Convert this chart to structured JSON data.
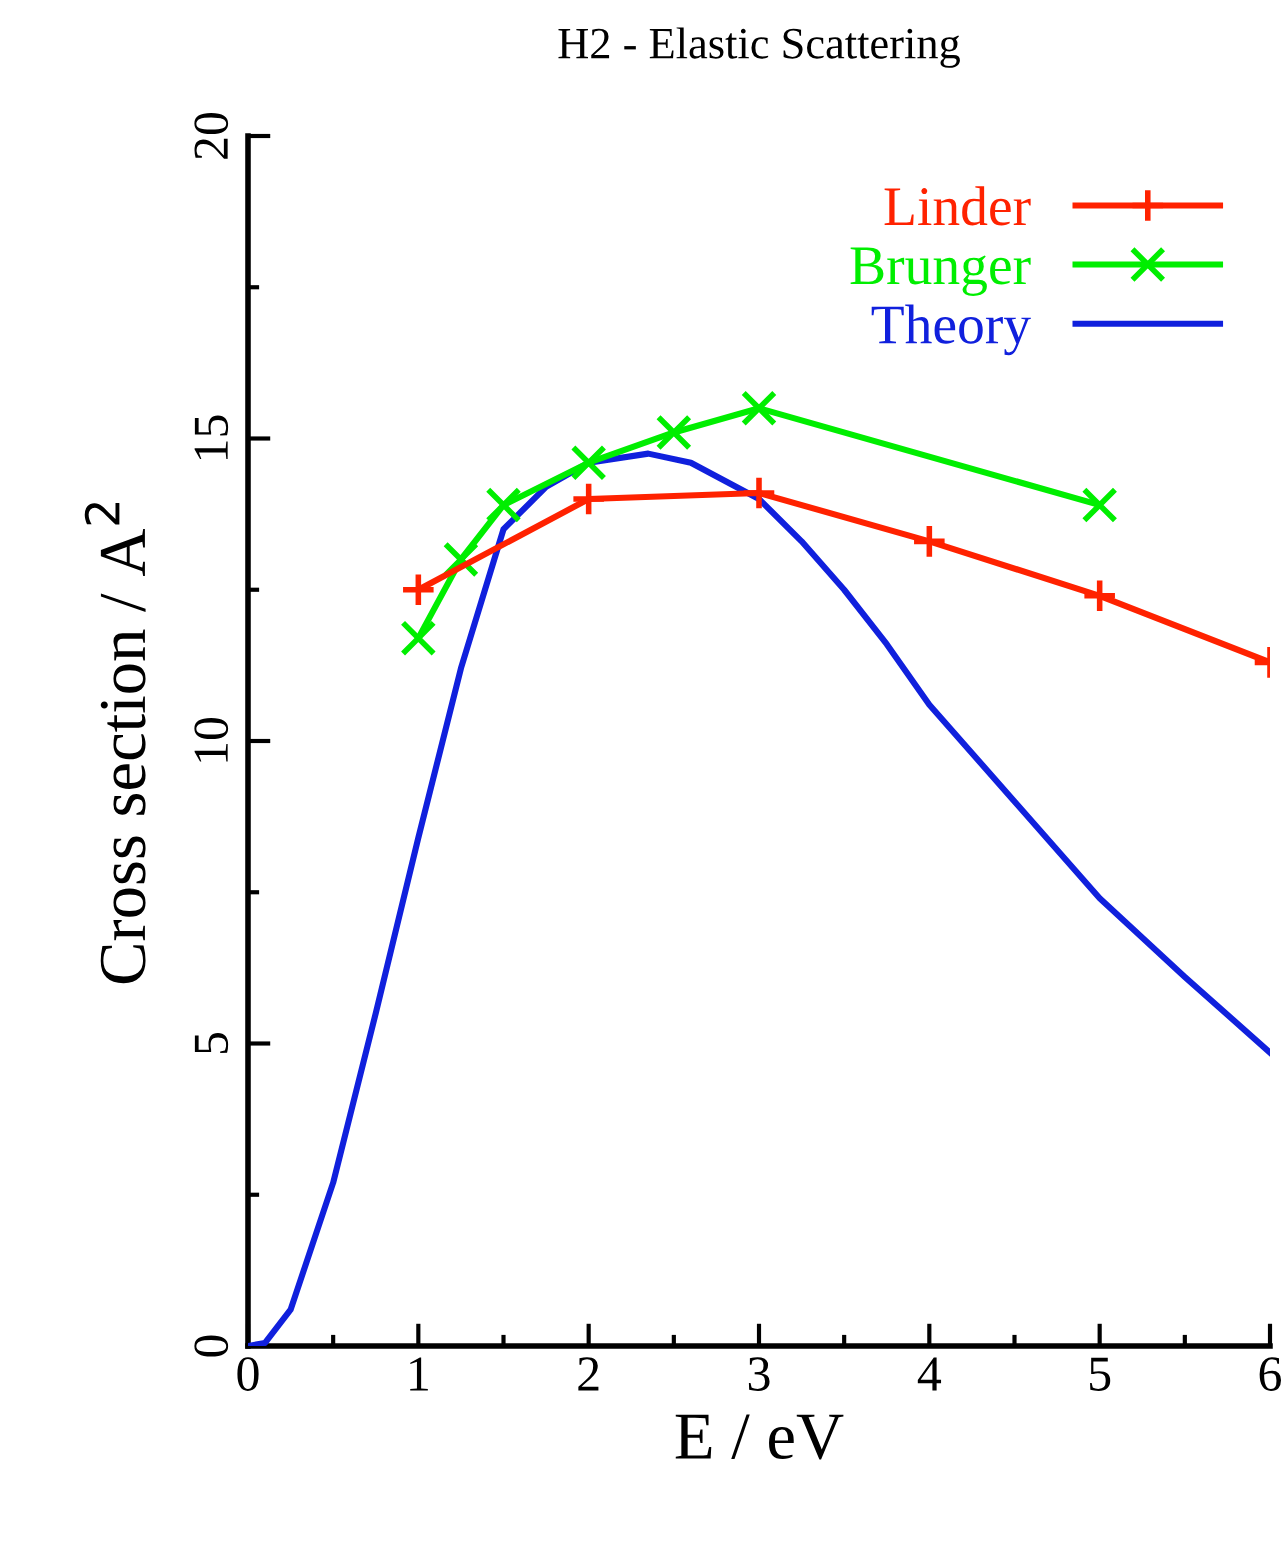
{
  "chart_data": {
    "type": "line",
    "title": "H2 - Elastic Scattering",
    "xlabel": "E / eV",
    "ylabel": "Cross section / A$^{2}$",
    "xlim": [
      0,
      6
    ],
    "xticks": [
      0,
      1,
      2,
      3,
      4,
      5,
      6
    ],
    "ylim": [
      0,
      20
    ],
    "yticks": [
      0,
      5,
      10,
      15,
      20
    ],
    "grid": false,
    "legend": "top right",
    "series": [
      {
        "name": "Linder",
        "color": "#ff2200",
        "marker": "plus",
        "x": [
          1,
          2,
          3,
          4,
          5,
          6
        ],
        "values": [
          12.5,
          14.0,
          14.1,
          13.3,
          12.4,
          11.3
        ]
      },
      {
        "name": "Brunger",
        "color": "#00ee00",
        "marker": "cross",
        "x": [
          1,
          1.25,
          1.5,
          2,
          2.5,
          3,
          5
        ],
        "values": [
          11.7,
          13.0,
          13.9,
          14.6,
          15.1,
          15.5,
          13.9
        ]
      },
      {
        "name": "Theory",
        "color": "#1020dd",
        "marker": "none",
        "x": [
          0,
          0.1,
          0.25,
          0.5,
          0.75,
          1,
          1.25,
          1.5,
          1.75,
          2,
          2.35,
          2.6,
          3,
          3.25,
          3.5,
          3.75,
          4,
          4.5,
          5,
          5.5,
          6
        ],
        "values": [
          0,
          0.05,
          0.6,
          2.7,
          5.5,
          8.4,
          11.2,
          13.5,
          14.2,
          14.6,
          14.75,
          14.6,
          14.0,
          13.3,
          12.5,
          11.6,
          10.6,
          9.0,
          7.4,
          6.1,
          4.85
        ]
      }
    ]
  }
}
